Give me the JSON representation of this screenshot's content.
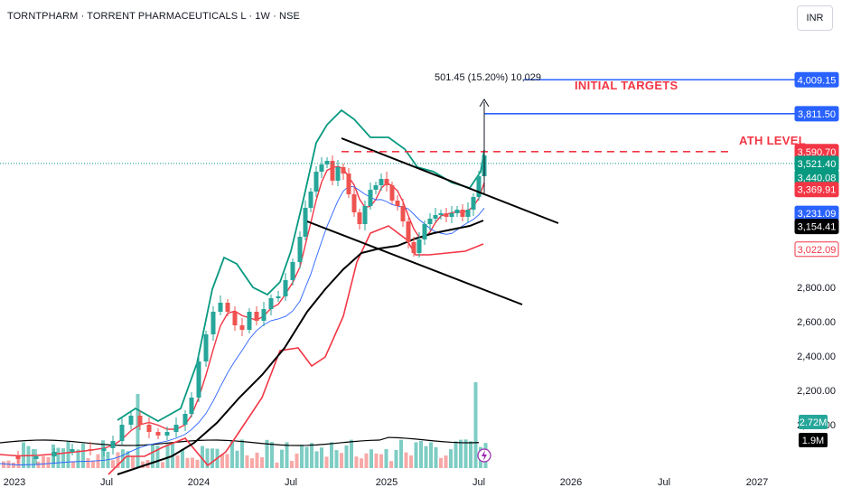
{
  "header": {
    "title": "TORNTPHARM · TORRENT PHARMACEUTICALS L · 1W · NSE"
  },
  "currency_button": {
    "label": "INR"
  },
  "colors": {
    "up": "#26a69a",
    "down": "#ef5350",
    "target_line": "#2962ff",
    "ath_line": "#f23645",
    "bb_band": "#089981",
    "bb_lower": "#f23645",
    "bb_basis": "#f23645",
    "ma_blue": "#2962ff",
    "ma_black": "#000000"
  },
  "annotations": {
    "measure": "501.45 (15.20%) 10,029",
    "initial_targets": "INITIAL TARGETS",
    "ath_level": "ATH LEVEL"
  },
  "chart_data": {
    "type": "candlestick",
    "symbol": "TORNTPHARM",
    "interval": "1W",
    "exchange": "NSE",
    "currency": "INR",
    "x_ticks": [
      "2023",
      "Jul",
      "2024",
      "Jul",
      "2025",
      "Jul",
      "2026",
      "Jul",
      "2027"
    ],
    "y_ticks": [
      "2,800.00",
      "2,600.00",
      "2,400.00",
      "2,200.00",
      "2,000.00"
    ],
    "price_badges": [
      {
        "label": "4,009.15",
        "value": 4009.15,
        "color": "#2962ff"
      },
      {
        "label": "3,811.50",
        "value": 3811.5,
        "color": "#2962ff"
      },
      {
        "label": "3,590.70",
        "value": 3590.7,
        "color": "#f23645"
      },
      {
        "label": "3,521.40",
        "value": 3521.4,
        "color": "#089981"
      },
      {
        "label": "3,440.08",
        "value": 3440.08,
        "color": "#089981"
      },
      {
        "label": "3,369.91",
        "value": 3369.91,
        "color": "#f23645"
      },
      {
        "label": "3,231.09",
        "value": 3231.09,
        "color": "#2962ff"
      },
      {
        "label": "3,154.41",
        "value": 3154.41,
        "color": "#000000"
      },
      {
        "label": "3,022.09",
        "value": 3022.09,
        "color": "#f23645"
      }
    ],
    "volume_badges": [
      {
        "label": "2.72M",
        "color": "#26a69a"
      },
      {
        "label": "1.9M",
        "color": "#000000"
      }
    ],
    "targets": [
      4009.15,
      3811.5
    ],
    "ath_level": 3590.7,
    "last_close": 3521.4
  }
}
